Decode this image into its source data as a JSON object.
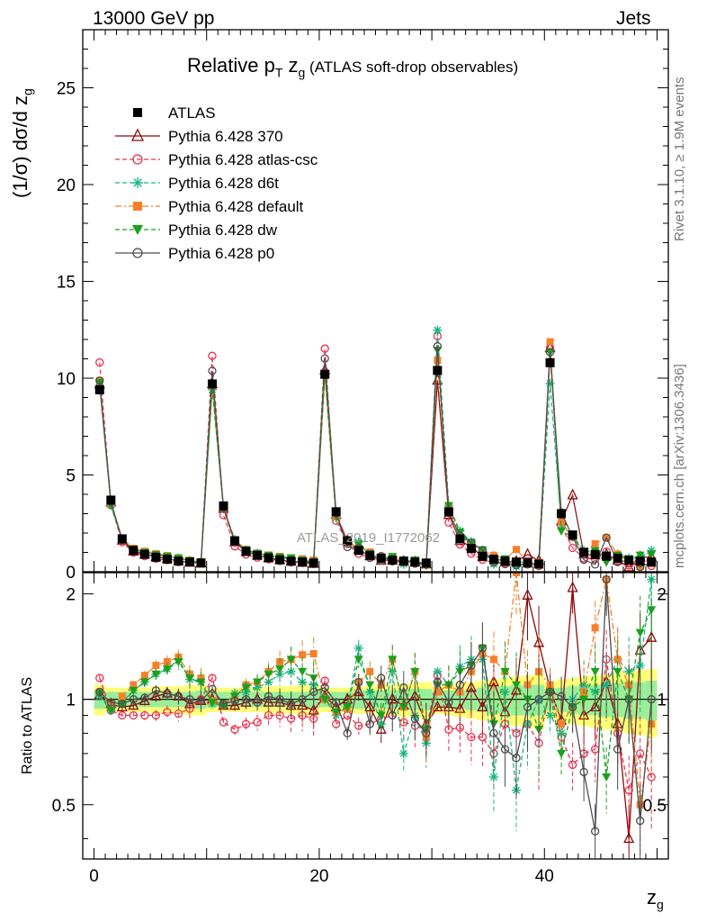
{
  "header": {
    "energy_label": "13000 GeV pp",
    "process_label": "Jets",
    "rivet_label": "Rivet 3.1.10, ≥ 1.9M events",
    "mcplots_label": "mcplots.cern.ch [arXiv:1306.3436]"
  },
  "chart_data": {
    "type": "line",
    "title": "Relative pT zg (ATLAS soft-drop observables)",
    "title_parts": {
      "pre": "Relative p",
      "sub_t": "T",
      "mid": " z",
      "sub_g": "g",
      "post": " (ATLAS soft-drop observables)"
    },
    "ylabel": "(1/σ) dσ/d z",
    "ylabel_sub": "g",
    "ratio_ylabel": "Ratio to ATLAS",
    "xlabel": "z",
    "xlabel_sub": "g",
    "watermark": "ATLAS_2019_I1772062",
    "xlim": [
      -1,
      51
    ],
    "ylim": [
      0,
      28
    ],
    "ratio_ylim": [
      0.35,
      2.3
    ],
    "xticks": [
      "0",
      "20",
      "40"
    ],
    "yticks": [
      "0",
      "5",
      "10",
      "15",
      "20",
      "25"
    ],
    "ratio_yticks": [
      "0.5",
      "1",
      "2"
    ],
    "legend_position": "upper-left",
    "grid": false,
    "x": [
      0.5,
      1.5,
      2.5,
      3.5,
      4.5,
      5.5,
      6.5,
      7.5,
      8.5,
      9.5,
      10.5,
      11.5,
      12.5,
      13.5,
      14.5,
      15.5,
      16.5,
      17.5,
      18.5,
      19.5,
      20.5,
      21.5,
      22.5,
      23.5,
      24.5,
      25.5,
      26.5,
      27.5,
      28.5,
      29.5,
      30.5,
      31.5,
      32.5,
      33.5,
      34.5,
      35.5,
      36.5,
      37.5,
      38.5,
      39.5,
      40.5,
      41.5,
      42.5,
      43.5,
      44.5,
      45.5,
      46.5,
      47.5,
      48.5,
      49.5
    ],
    "data": {
      "name": "ATLAS",
      "values": [
        9.4,
        3.7,
        1.7,
        1.1,
        0.9,
        0.75,
        0.65,
        0.55,
        0.5,
        0.45,
        9.7,
        3.4,
        1.6,
        1.05,
        0.85,
        0.72,
        0.62,
        0.55,
        0.5,
        0.45,
        10.2,
        3.1,
        1.6,
        1.1,
        0.85,
        0.7,
        0.6,
        0.55,
        0.5,
        0.45,
        10.4,
        3.1,
        1.7,
        1.2,
        0.8,
        0.65,
        0.55,
        0.5,
        0.45,
        0.4,
        10.8,
        3.0,
        1.9,
        1.0,
        0.9,
        0.8,
        0.7,
        0.6,
        0.55,
        0.5
      ],
      "band_inner": [
        0.06,
        0.05,
        0.05,
        0.05,
        0.05,
        0.05,
        0.05,
        0.05,
        0.05,
        0.06,
        0.05,
        0.05,
        0.05,
        0.05,
        0.05,
        0.05,
        0.05,
        0.05,
        0.05,
        0.06,
        0.05,
        0.05,
        0.05,
        0.06,
        0.06,
        0.06,
        0.06,
        0.06,
        0.07,
        0.07,
        0.05,
        0.06,
        0.06,
        0.07,
        0.08,
        0.09,
        0.09,
        0.1,
        0.1,
        0.1,
        0.07,
        0.08,
        0.09,
        0.1,
        0.1,
        0.11,
        0.11,
        0.12,
        0.12,
        0.13
      ],
      "band_outer": [
        0.1,
        0.08,
        0.08,
        0.08,
        0.08,
        0.09,
        0.09,
        0.09,
        0.1,
        0.1,
        0.08,
        0.08,
        0.08,
        0.08,
        0.08,
        0.09,
        0.09,
        0.09,
        0.1,
        0.1,
        0.08,
        0.08,
        0.08,
        0.09,
        0.09,
        0.1,
        0.1,
        0.11,
        0.11,
        0.12,
        0.09,
        0.1,
        0.11,
        0.12,
        0.13,
        0.14,
        0.15,
        0.16,
        0.17,
        0.18,
        0.12,
        0.14,
        0.15,
        0.16,
        0.17,
        0.18,
        0.19,
        0.2,
        0.21,
        0.22
      ]
    },
    "series": [
      {
        "name": "Pythia 6.428 370",
        "color": "#8b0a0a",
        "marker": "open-triangle",
        "dash": "solid",
        "ratio": [
          1.03,
          0.97,
          0.95,
          0.96,
          0.99,
          1.02,
          1.04,
          1.02,
          0.97,
          0.99,
          1.0,
          0.96,
          0.96,
          0.98,
          1.0,
          0.98,
          0.98,
          0.96,
          0.96,
          0.93,
          1.02,
          0.95,
          1.0,
          1.05,
          0.95,
          0.82,
          1.0,
          0.96,
          1.02,
          0.85,
          0.95,
          0.95,
          0.94,
          1.08,
          0.95,
          1.12,
          0.92,
          1.06,
          1.98,
          1.45,
          1.07,
          0.87,
          2.08,
          0.9,
          0.95,
          1.12,
          0.85,
          0.4,
          1.38,
          1.5
        ]
      },
      {
        "name": "Pythia 6.428 atlas-csc",
        "color": "#e8314d",
        "marker": "open-circle",
        "dash": "dashed",
        "ratio": [
          1.15,
          0.93,
          0.9,
          0.9,
          0.9,
          0.9,
          0.92,
          0.91,
          0.94,
          1.0,
          1.15,
          0.86,
          0.82,
          0.85,
          0.86,
          0.9,
          0.9,
          0.88,
          0.9,
          0.88,
          1.13,
          0.85,
          0.9,
          0.84,
          0.85,
          0.88,
          0.9,
          0.86,
          0.84,
          0.82,
          1.17,
          0.82,
          0.83,
          0.78,
          0.78,
          0.7,
          0.85,
          0.8,
          0.85,
          0.75,
          1.07,
          0.78,
          0.65,
          0.7,
          0.72,
          1.3,
          0.8,
          0.55,
          0.7,
          0.6
        ]
      },
      {
        "name": "Pythia 6.428 d6t",
        "color": "#19b486",
        "marker": "star",
        "dash": "dashed",
        "ratio": [
          1.02,
          0.93,
          0.98,
          1.06,
          1.12,
          1.18,
          1.22,
          1.3,
          1.14,
          1.12,
          0.97,
          0.96,
          1.04,
          1.05,
          1.08,
          1.12,
          1.18,
          1.2,
          1.12,
          1.1,
          1.0,
          0.9,
          0.95,
          1.4,
          1.05,
          0.85,
          1.2,
          0.7,
          0.9,
          0.75,
          1.2,
          1.1,
          1.24,
          1.3,
          1.3,
          0.6,
          1.05,
          0.55,
          0.85,
          1.0,
          0.9,
          0.8,
          1.0,
          1.1,
          1.05,
          1.1,
          1.3,
          1.2,
          1.25,
          2.2
        ]
      },
      {
        "name": "Pythia 6.428 default",
        "color": "#f6802a",
        "marker": "square",
        "dash": "dashdot",
        "ratio": [
          1.05,
          0.96,
          1.02,
          1.1,
          1.17,
          1.25,
          1.28,
          1.32,
          1.18,
          1.15,
          0.99,
          0.97,
          1.02,
          1.1,
          1.12,
          1.2,
          1.28,
          1.3,
          1.34,
          1.35,
          1.0,
          0.92,
          0.94,
          1.12,
          1.2,
          1.1,
          1.3,
          0.95,
          1.2,
          0.78,
          1.05,
          1.1,
          1.05,
          1.2,
          1.35,
          1.3,
          1.2,
          2.3,
          1.1,
          1.2,
          1.1,
          0.85,
          0.95,
          1.05,
          1.6,
          2.2,
          1.3,
          1.1,
          0.5,
          0.85
        ]
      },
      {
        "name": "Pythia 6.428 dw",
        "color": "#1ca01c",
        "marker": "down-triangle",
        "dash": "dashed",
        "ratio": [
          1.04,
          0.93,
          0.97,
          1.06,
          1.12,
          1.18,
          1.22,
          1.28,
          1.15,
          1.12,
          0.98,
          0.96,
          1.02,
          1.08,
          1.12,
          1.18,
          1.22,
          1.3,
          1.2,
          1.15,
          1.0,
          0.92,
          0.95,
          1.3,
          1.1,
          0.9,
          1.3,
          0.95,
          1.2,
          0.82,
          1.1,
          1.1,
          1.2,
          1.25,
          1.4,
          0.85,
          1.2,
          1.1,
          1.0,
          0.82,
          1.05,
          0.7,
          0.95,
          1.0,
          1.2,
          0.6,
          1.2,
          1.0,
          1.55,
          1.8
        ]
      },
      {
        "name": "Pythia 6.428 p0",
        "color": "#4d4d4d",
        "marker": "open-circle",
        "dash": "solid",
        "ratio": [
          1.05,
          0.98,
          0.97,
          1.0,
          1.01,
          1.06,
          1.04,
          1.02,
          1.0,
          0.99,
          1.07,
          0.97,
          0.99,
          1.0,
          0.98,
          1.02,
          1.0,
          0.97,
          1.0,
          1.05,
          1.08,
          0.98,
          0.8,
          1.12,
          0.85,
          1.15,
          0.9,
          1.08,
          0.88,
          0.8,
          1.12,
          0.98,
          1.1,
          1.25,
          1.4,
          0.8,
          0.72,
          0.68,
          0.95,
          1.0,
          1.05,
          1.02,
          0.95,
          0.62,
          0.42,
          2.2,
          0.72,
          1.0,
          0.45,
          1.0
        ]
      }
    ]
  }
}
